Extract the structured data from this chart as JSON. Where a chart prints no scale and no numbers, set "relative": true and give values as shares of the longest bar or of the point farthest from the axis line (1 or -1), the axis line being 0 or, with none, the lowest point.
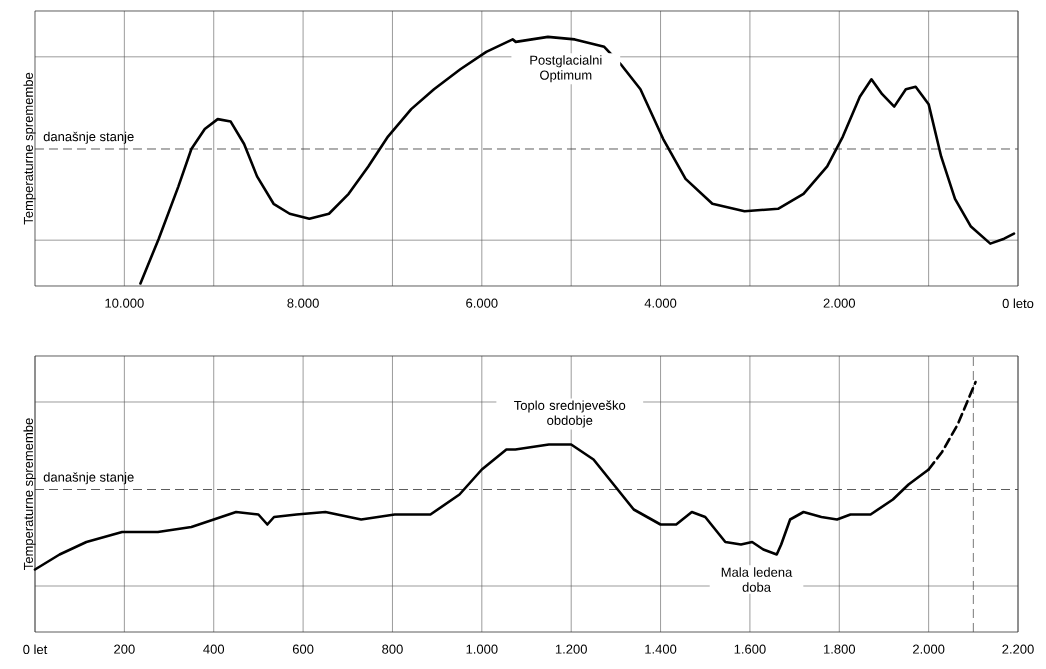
{
  "chart_data": [
    {
      "type": "line",
      "ylabel": "Temperaturne spremembe",
      "relative": true,
      "grid": true,
      "marker": "none",
      "xlim": [
        11000,
        0
      ],
      "xticks": [
        {
          "value": 10000,
          "label": "10.000"
        },
        {
          "value": 9000,
          "label": null
        },
        {
          "value": 8000,
          "label": "8.000"
        },
        {
          "value": 7000,
          "label": null
        },
        {
          "value": 6000,
          "label": "6.000"
        },
        {
          "value": 5000,
          "label": null
        },
        {
          "value": 4000,
          "label": "4.000"
        },
        {
          "value": 3000,
          "label": null
        },
        {
          "value": 2000,
          "label": "2.000"
        },
        {
          "value": 1000,
          "label": null
        },
        {
          "value": 0,
          "label": "0 leto"
        }
      ],
      "series": [
        {
          "color": "#000000",
          "line_style": "solid",
          "x": [
            9820,
            9615,
            9395,
            9250,
            9100,
            8955,
            8810,
            8660,
            8515,
            8330,
            8150,
            7930,
            7710,
            7490,
            7270,
            7050,
            6790,
            6535,
            6240,
            5950,
            5655,
            5620,
            5260,
            4960,
            4630,
            4445,
            4225,
            3970,
            3720,
            3420,
            3060,
            2685,
            2400,
            2135,
            1960,
            1770,
            1640,
            1520,
            1385,
            1255,
            1145,
            1000,
            860,
            705,
            530,
            310,
            155,
            45
          ],
          "values": [
            0.01,
            0.19,
            0.4,
            0.55,
            0.63,
            0.67,
            0.66,
            0.57,
            0.44,
            0.33,
            0.29,
            0.27,
            0.29,
            0.37,
            0.48,
            0.6,
            0.71,
            0.79,
            0.87,
            0.94,
            0.99,
            0.98,
            1.0,
            0.99,
            0.96,
            0.89,
            0.79,
            0.59,
            0.43,
            0.33,
            0.3,
            0.31,
            0.37,
            0.48,
            0.6,
            0.76,
            0.83,
            0.77,
            0.72,
            0.79,
            0.8,
            0.73,
            0.52,
            0.35,
            0.24,
            0.17,
            0.19,
            0.21
          ]
        }
      ],
      "ref_lines": [
        {
          "axis": "y",
          "value": 0.55,
          "label": "današnje stanje",
          "line_style": "dashed",
          "color": "#333333"
        }
      ],
      "annotations": [
        "Postglacialni Optimum"
      ]
    },
    {
      "type": "line",
      "ylabel": "Temperaturne spremembe",
      "relative": true,
      "grid": true,
      "marker": "none",
      "xlim": [
        0,
        2200
      ],
      "xticks": [
        {
          "value": 0,
          "label": "0 let"
        },
        200,
        400,
        600,
        800,
        {
          "value": 1000,
          "label": "1.000"
        },
        {
          "value": 1200,
          "label": "1.200"
        },
        {
          "value": 1400,
          "label": "1.400"
        },
        {
          "value": 1600,
          "label": "1.600"
        },
        {
          "value": 1800,
          "label": "1.800"
        },
        {
          "value": 2000,
          "label": "2.000"
        },
        {
          "value": 2200,
          "label": "2.200"
        }
      ],
      "series": [
        {
          "color": "#000000",
          "line_style": "solid",
          "x": [
            0,
            55,
            115,
            195,
            275,
            350,
            400,
            450,
            500,
            520,
            535,
            585,
            650,
            730,
            805,
            885,
            950,
            1000,
            1055,
            1075,
            1150,
            1200,
            1250,
            1295,
            1340,
            1400,
            1435,
            1470,
            1500,
            1545,
            1580,
            1605,
            1630,
            1660,
            1670,
            1690,
            1720,
            1760,
            1795,
            1825,
            1870,
            1920,
            1955,
            2000
          ],
          "values": [
            0.25,
            0.31,
            0.36,
            0.4,
            0.4,
            0.42,
            0.45,
            0.48,
            0.47,
            0.43,
            0.46,
            0.47,
            0.48,
            0.45,
            0.47,
            0.47,
            0.55,
            0.65,
            0.73,
            0.73,
            0.75,
            0.75,
            0.69,
            0.59,
            0.49,
            0.43,
            0.43,
            0.48,
            0.46,
            0.36,
            0.35,
            0.36,
            0.33,
            0.31,
            0.35,
            0.45,
            0.48,
            0.46,
            0.45,
            0.47,
            0.47,
            0.53,
            0.59,
            0.65
          ]
        },
        {
          "color": "#000000",
          "line_style": "dashed",
          "x": [
            2000,
            2030,
            2065,
            2105
          ],
          "values": [
            0.65,
            0.72,
            0.83,
            1.0
          ]
        }
      ],
      "ref_lines": [
        {
          "axis": "y",
          "value": 0.57,
          "label": "današnje stanje",
          "line_style": "dashed",
          "color": "#333333"
        },
        {
          "axis": "x",
          "value": 2100,
          "line_style": "dashed",
          "color": "#555555"
        }
      ],
      "annotations": [
        "Toplo srednjeveško obdobje",
        "Mala ledena doba"
      ]
    }
  ]
}
